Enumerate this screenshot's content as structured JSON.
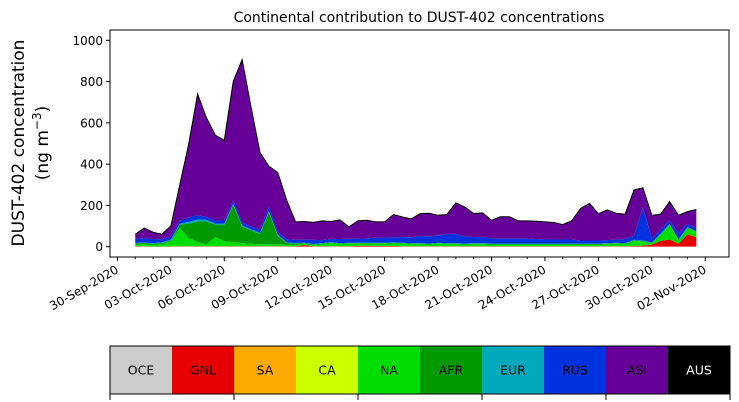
{
  "chart_data": {
    "type": "area",
    "stacked": true,
    "title": "Continental contribution to DUST-402 concentrations",
    "ylabel_line1": "DUST-402 concentration",
    "ylabel_line2_prefix": "(ng m",
    "ylabel_line2_sup": "−3",
    "ylabel_line2_suffix": ")",
    "xlabel": "",
    "x_start": "2020-10-01T00:00",
    "x_step_hours": 12,
    "xlim": [
      "2020-09-29T14:00",
      "2020-11-03T08:00"
    ],
    "ylim": [
      -50,
      1050
    ],
    "y_ticks": [
      0,
      200,
      400,
      600,
      800,
      1000
    ],
    "x_ticks": [
      "2020-09-30",
      "2020-10-03",
      "2020-10-06",
      "2020-10-09",
      "2020-10-12",
      "2020-10-15",
      "2020-10-18",
      "2020-10-21",
      "2020-10-24",
      "2020-10-27",
      "2020-10-30",
      "2020-11-02"
    ],
    "x_tick_labels": [
      "30-Sep-2020",
      "03-Oct-2020",
      "06-Oct-2020",
      "09-Oct-2020",
      "12-Oct-2020",
      "15-Oct-2020",
      "18-Oct-2020",
      "21-Oct-2020",
      "24-Oct-2020",
      "27-Oct-2020",
      "30-Oct-2020",
      "02-Nov-2020"
    ],
    "x_minor_ticks_per_major": 3,
    "grid": false,
    "series": [
      {
        "name": "OCE",
        "color": "#cccccc",
        "values": [
          0,
          0,
          0,
          0,
          0,
          0,
          0,
          0,
          0,
          0,
          0,
          0,
          0,
          0,
          0,
          0,
          0,
          0,
          0,
          0,
          0,
          0,
          0,
          0,
          0,
          0,
          0,
          0,
          0,
          0,
          0,
          0,
          0,
          0,
          0,
          0,
          0,
          0,
          0,
          0,
          0,
          0,
          0,
          0,
          0,
          0,
          0,
          0,
          0,
          0,
          0,
          0,
          0,
          0,
          0,
          0,
          0,
          0,
          0,
          0,
          0,
          0,
          0,
          0
        ]
      },
      {
        "name": "GNL",
        "color": "#e60000",
        "values": [
          2,
          2,
          1,
          1,
          1,
          2,
          2,
          2,
          2,
          2,
          2,
          2,
          2,
          2,
          2,
          2,
          2,
          2,
          2,
          8,
          2,
          2,
          2,
          2,
          2,
          4,
          5,
          4,
          4,
          4,
          2,
          2,
          2,
          2,
          2,
          2,
          2,
          2,
          2,
          2,
          2,
          2,
          2,
          2,
          2,
          2,
          2,
          2,
          2,
          2,
          2,
          2,
          2,
          2,
          2,
          2,
          3,
          5,
          10,
          28,
          35,
          15,
          60,
          45
        ]
      },
      {
        "name": "SA",
        "color": "#ffaa00",
        "values": [
          0,
          0,
          0,
          0,
          0,
          0,
          0,
          0,
          0,
          0,
          0,
          0,
          0,
          0,
          0,
          0,
          0,
          0,
          0,
          0,
          0,
          0,
          0,
          0,
          0,
          0,
          0,
          0,
          0,
          0,
          0,
          0,
          0,
          0,
          0,
          0,
          0,
          0,
          0,
          0,
          0,
          0,
          0,
          0,
          0,
          0,
          0,
          0,
          0,
          0,
          0,
          0,
          0,
          0,
          0,
          0,
          0,
          0,
          0,
          0,
          0,
          0,
          0,
          0
        ]
      },
      {
        "name": "CA",
        "color": "#ccff00",
        "values": [
          0,
          0,
          0,
          0,
          0,
          0,
          0,
          0,
          0,
          0,
          0,
          0,
          0,
          0,
          0,
          0,
          0,
          0,
          0,
          0,
          0,
          0,
          0,
          0,
          0,
          0,
          0,
          0,
          0,
          0,
          0,
          0,
          0,
          0,
          0,
          0,
          0,
          0,
          0,
          0,
          0,
          0,
          0,
          0,
          0,
          0,
          0,
          0,
          0,
          0,
          0,
          0,
          0,
          0,
          0,
          0,
          0,
          0,
          0,
          0,
          0,
          0,
          0,
          0
        ]
      },
      {
        "name": "NA",
        "color": "#00dd00",
        "values": [
          8,
          10,
          8,
          12,
          25,
          90,
          40,
          20,
          10,
          45,
          25,
          20,
          15,
          12,
          10,
          10,
          10,
          8,
          8,
          6,
          6,
          10,
          15,
          10,
          12,
          10,
          10,
          10,
          10,
          12,
          12,
          10,
          10,
          8,
          12,
          10,
          10,
          8,
          10,
          10,
          8,
          8,
          8,
          8,
          8,
          8,
          8,
          8,
          8,
          8,
          8,
          8,
          8,
          10,
          12,
          10,
          25,
          20,
          5,
          30,
          70,
          15,
          30,
          25
        ]
      },
      {
        "name": "AFR",
        "color": "#009900",
        "values": [
          5,
          5,
          5,
          5,
          5,
          15,
          70,
          100,
          110,
          60,
          80,
          180,
          80,
          65,
          50,
          155,
          40,
          8,
          5,
          3,
          3,
          3,
          3,
          3,
          3,
          3,
          3,
          3,
          3,
          3,
          3,
          3,
          3,
          3,
          3,
          3,
          3,
          3,
          3,
          3,
          3,
          3,
          3,
          3,
          3,
          3,
          3,
          3,
          3,
          3,
          3,
          3,
          3,
          3,
          3,
          3,
          3,
          3,
          3,
          3,
          3,
          3,
          3,
          3
        ]
      },
      {
        "name": "EUR",
        "color": "#00aabb",
        "values": [
          3,
          3,
          3,
          3,
          3,
          5,
          8,
          10,
          8,
          5,
          5,
          5,
          5,
          5,
          5,
          5,
          5,
          3,
          3,
          2,
          2,
          2,
          2,
          2,
          2,
          2,
          2,
          2,
          2,
          2,
          2,
          2,
          2,
          2,
          2,
          2,
          2,
          2,
          2,
          2,
          2,
          2,
          2,
          2,
          2,
          2,
          2,
          2,
          2,
          2,
          2,
          2,
          2,
          2,
          2,
          2,
          2,
          2,
          2,
          2,
          2,
          2,
          2,
          2
        ]
      },
      {
        "name": "RUS",
        "color": "#0033dd",
        "values": [
          20,
          22,
          20,
          15,
          15,
          15,
          22,
          20,
          15,
          15,
          15,
          15,
          15,
          15,
          15,
          20,
          15,
          15,
          15,
          15,
          20,
          15,
          15,
          20,
          20,
          20,
          20,
          25,
          25,
          25,
          28,
          28,
          35,
          35,
          35,
          45,
          45,
          35,
          30,
          30,
          25,
          25,
          25,
          25,
          25,
          22,
          20,
          20,
          20,
          20,
          15,
          15,
          15,
          15,
          15,
          20,
          20,
          160,
          20,
          20,
          18,
          30,
          15,
          15
        ]
      },
      {
        "name": "ASI",
        "color": "#660099",
        "values": [
          22,
          48,
          33,
          24,
          51,
          173,
          355,
          588,
          479,
          413,
          389,
          578,
          790,
          578,
          375,
          198,
          288,
          190,
          87,
          88,
          85,
          93,
          85,
          93,
          57,
          86,
          88,
          76,
          76,
          110,
          97,
          90,
          108,
          112,
          98,
          94,
          150,
          142,
          114,
          117,
          88,
          105,
          105,
          85,
          85,
          86,
          85,
          82,
          72,
          90,
          155,
          180,
          130,
          146,
          128,
          120,
          222,
          95,
          112,
          75,
          90,
          87,
          60,
          90
        ]
      },
      {
        "name": "AUS",
        "color": "#000000",
        "values": [
          0,
          0,
          0,
          0,
          0,
          0,
          0,
          0,
          0,
          0,
          0,
          0,
          0,
          0,
          0,
          0,
          0,
          0,
          0,
          0,
          0,
          0,
          0,
          0,
          0,
          0,
          0,
          0,
          0,
          0,
          0,
          0,
          0,
          0,
          0,
          0,
          0,
          0,
          0,
          0,
          0,
          0,
          0,
          0,
          0,
          0,
          0,
          0,
          0,
          0,
          0,
          0,
          0,
          0,
          0,
          0,
          0,
          0,
          0,
          0,
          0,
          0,
          0,
          0
        ]
      }
    ],
    "legend": {
      "placement": "bottom",
      "items": [
        {
          "label": "OCE",
          "color": "#cccccc",
          "text_color": "#000000"
        },
        {
          "label": "GNL",
          "color": "#e60000",
          "text_color": "#000000"
        },
        {
          "label": "SA",
          "color": "#ffaa00",
          "text_color": "#000000"
        },
        {
          "label": "CA",
          "color": "#ccff00",
          "text_color": "#000000"
        },
        {
          "label": "NA",
          "color": "#00dd00",
          "text_color": "#000000"
        },
        {
          "label": "AFR",
          "color": "#009900",
          "text_color": "#000000"
        },
        {
          "label": "EUR",
          "color": "#00aabb",
          "text_color": "#000000"
        },
        {
          "label": "RUS",
          "color": "#0033dd",
          "text_color": "#000000"
        },
        {
          "label": "ASI",
          "color": "#660099",
          "text_color": "#000000"
        },
        {
          "label": "AUS",
          "color": "#000000",
          "text_color": "#ffffff"
        }
      ]
    }
  }
}
